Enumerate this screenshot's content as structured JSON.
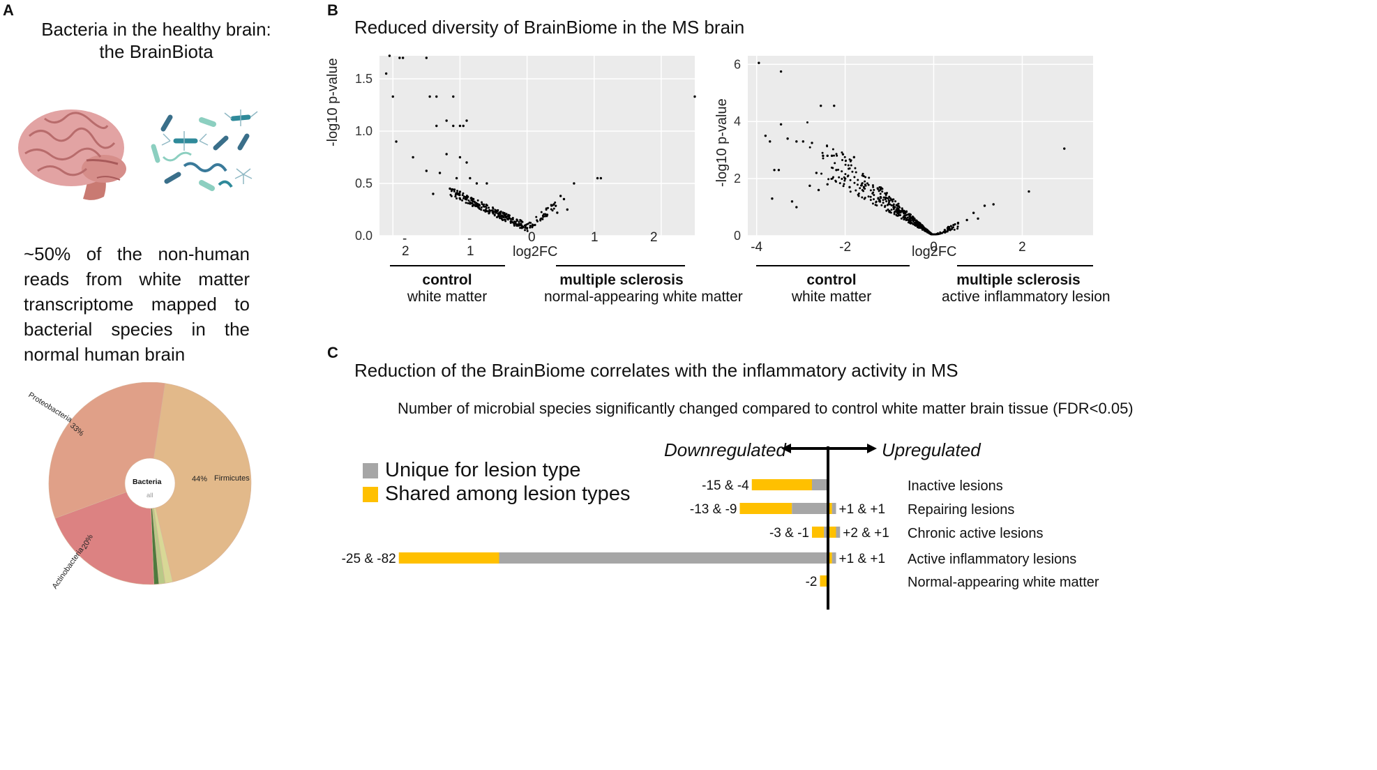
{
  "panelA": {
    "label": "A",
    "title_line1": "Bacteria in the healthy brain:",
    "title_line2": "the BrainBiota",
    "brain_icon": "brain-illustration",
    "bacteria_icon": "bacteria-illustration",
    "body_lines": [
      "~50%  of  the  non-human",
      "reads  from  white  matter",
      "transcriptome  mapped  to",
      "bacterial   species   in   the"
    ],
    "body_last": "normal human brain",
    "donut_center_title": "Bacteria",
    "donut_center_sub": "all",
    "slice_labels": {
      "proteobacteria": "Proteobacteria",
      "proteobacteria_pct": "33%",
      "firmicutes": "Firmicutes",
      "firmicutes_pct": "44%",
      "actinobacteria": "Actinobacteria",
      "actinobacteria_pct": "20%"
    },
    "colors": {
      "firmicutes": "#e2b98a",
      "proteobacteria": "#e0a088",
      "actinobacteria": "#dc8282",
      "small1": "#d8d896",
      "small2": "#b9c987",
      "small3": "#4e7a3e"
    }
  },
  "panelB": {
    "label": "B",
    "title": "Reduced diversity of BrainBiome in the MS brain",
    "plot1": {
      "ylabel": "-log10 p-value",
      "xlabel": "log2FC",
      "yticks": [
        "1.5",
        "1.0",
        "0.5",
        "0.0"
      ],
      "xticks_neg": [
        {
          "dash": "-",
          "num": "2"
        },
        {
          "dash": "-",
          "num": "1"
        }
      ],
      "xticks_pos": [
        "0",
        "1",
        "2"
      ],
      "group_left_bold": "control",
      "group_left_sub": "white matter",
      "group_right_bold": "multiple sclerosis",
      "group_right_sub": "normal-appearing white matter"
    },
    "plot2": {
      "ylabel": "-log10 p-value",
      "xlabel": "log2FC",
      "yticks": [
        "6",
        "4",
        "2",
        "0"
      ],
      "xticks": [
        "-4",
        "-2",
        "0",
        "2"
      ],
      "group_left_bold": "control",
      "group_left_sub": "white matter",
      "group_right_bold": "multiple sclerosis",
      "group_right_sub": "active inflammatory lesion"
    }
  },
  "panelC": {
    "label": "C",
    "title": "Reduction of the BrainBiome correlates with the inflammatory activity in MS",
    "subtitle": "Number of microbial species significantly changed  compared to control white matter brain tissue (FDR<0.05)",
    "down_label": "Downregulated",
    "up_label": "Upregulated",
    "legend": [
      {
        "label": "Unique  for lesion type",
        "color": "#a6a6a6"
      },
      {
        "label": "Shared among lesion types",
        "color": "#ffc000"
      }
    ]
  },
  "chart_data": [
    {
      "type": "pie",
      "title": "Bacteria all",
      "categories": [
        "Firmicutes",
        "Proteobacteria",
        "Actinobacteria",
        "Other"
      ],
      "values": [
        44,
        33,
        20,
        3
      ]
    },
    {
      "type": "scatter",
      "title": "control white matter vs multiple sclerosis normal-appearing white matter",
      "xlabel": "log2FC",
      "ylabel": "-log10 p-value",
      "xlim": [
        -2.2,
        2.5
      ],
      "ylim": [
        0,
        1.72
      ],
      "points": [
        [
          -2.1,
          1.55
        ],
        [
          -2.05,
          1.72
        ],
        [
          -2.0,
          1.33
        ],
        [
          -1.95,
          0.9
        ],
        [
          -1.9,
          1.7
        ],
        [
          -1.85,
          1.7
        ],
        [
          -1.5,
          1.7
        ],
        [
          -1.45,
          1.33
        ],
        [
          -1.35,
          1.33
        ],
        [
          -1.1,
          1.33
        ],
        [
          -1.35,
          1.05
        ],
        [
          -1.2,
          1.1
        ],
        [
          -1.1,
          1.05
        ],
        [
          -1.0,
          1.05
        ],
        [
          -0.95,
          1.05
        ],
        [
          -0.9,
          1.1
        ],
        [
          -1.7,
          0.75
        ],
        [
          -1.5,
          0.62
        ],
        [
          -1.3,
          0.6
        ],
        [
          -1.2,
          0.78
        ],
        [
          -1.0,
          0.75
        ],
        [
          -0.9,
          0.7
        ],
        [
          -1.05,
          0.55
        ],
        [
          -0.85,
          0.55
        ],
        [
          -0.75,
          0.5
        ],
        [
          -0.6,
          0.5
        ],
        [
          -1.4,
          0.4
        ],
        [
          -1.15,
          0.45
        ],
        [
          -1.0,
          0.42
        ],
        [
          -0.8,
          0.35
        ],
        [
          0.4,
          0.3
        ],
        [
          0.5,
          0.38
        ],
        [
          0.55,
          0.35
        ],
        [
          0.6,
          0.25
        ],
        [
          0.7,
          0.5
        ],
        [
          1.05,
          0.55
        ],
        [
          1.1,
          0.55
        ],
        [
          2.5,
          1.33
        ],
        [
          0.3,
          0.2
        ],
        [
          0.45,
          0.22
        ]
      ]
    },
    {
      "type": "scatter",
      "title": "control white matter vs multiple sclerosis active inflammatory lesion",
      "xlabel": "log2FC",
      "ylabel": "-log10 p-value",
      "xlim": [
        -4.2,
        3.6
      ],
      "ylim": [
        0,
        6.3
      ],
      "points": [
        [
          -3.95,
          6.05
        ],
        [
          -3.45,
          5.75
        ],
        [
          -3.8,
          3.5
        ],
        [
          -3.7,
          3.3
        ],
        [
          -3.45,
          3.9
        ],
        [
          -3.3,
          3.4
        ],
        [
          -3.1,
          3.3
        ],
        [
          -2.95,
          3.3
        ],
        [
          -3.6,
          2.3
        ],
        [
          -3.5,
          2.3
        ],
        [
          -2.75,
          3.25
        ],
        [
          -2.55,
          4.55
        ],
        [
          -2.25,
          4.55
        ],
        [
          -2.5,
          2.8
        ],
        [
          -2.4,
          2.8
        ],
        [
          -2.3,
          2.8
        ],
        [
          -2.65,
          2.2
        ],
        [
          -2.05,
          2.85
        ],
        [
          -1.8,
          2.75
        ],
        [
          -3.65,
          1.3
        ],
        [
          -3.2,
          1.2
        ],
        [
          -3.1,
          1.0
        ],
        [
          -2.8,
          1.75
        ],
        [
          -2.6,
          1.6
        ],
        [
          -2.4,
          1.8
        ],
        [
          -2.2,
          2.3
        ],
        [
          -2.0,
          2.0
        ],
        [
          -1.9,
          1.7
        ],
        [
          2.95,
          3.05
        ],
        [
          2.15,
          1.55
        ],
        [
          1.35,
          1.1
        ],
        [
          1.15,
          1.05
        ],
        [
          0.9,
          0.8
        ],
        [
          1.0,
          0.6
        ],
        [
          0.75,
          0.55
        ],
        [
          0.55,
          0.45
        ],
        [
          0.35,
          0.3
        ],
        [
          0.25,
          0.2
        ]
      ]
    },
    {
      "type": "bar",
      "orientation": "horizontal",
      "title": "Number of microbial species significantly changed compared to control white matter brain tissue (FDR<0.05)",
      "categories": [
        "Inactive lesions",
        "Repairing lesions",
        "Chronic active lesions",
        "Active inflammatory lesions",
        "Normal-appearing white matter"
      ],
      "series": [
        {
          "name": "Shared among lesion types (down)",
          "values": [
            -15,
            -13,
            -3,
            -25,
            -2
          ]
        },
        {
          "name": "Unique for lesion type (down)",
          "values": [
            -4,
            -9,
            -1,
            -82,
            0
          ]
        },
        {
          "name": "Shared among lesion types (up)",
          "values": [
            0,
            1,
            2,
            1,
            0
          ]
        },
        {
          "name": "Unique for lesion type (up)",
          "values": [
            0,
            1,
            1,
            1,
            0
          ]
        }
      ],
      "left_labels": [
        "-15 & -4",
        "-13 & -9",
        "-3 & -1",
        "-25 & -82",
        "-2"
      ],
      "right_labels": [
        "",
        "+1 & +1",
        "+2 & +1",
        "+1 & +1",
        ""
      ],
      "xlim": [
        -107,
        12
      ]
    }
  ]
}
